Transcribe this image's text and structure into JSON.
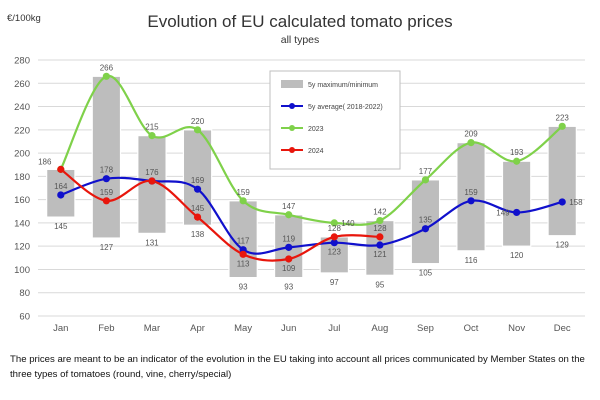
{
  "chart_data": {
    "type": "line",
    "title": "Evolution of EU calculated tomato prices",
    "subtitle": "all types",
    "ylabel": "€/100kg",
    "xlabel": "",
    "categories": [
      "Jan",
      "Feb",
      "Mar",
      "Apr",
      "May",
      "Jun",
      "Jul",
      "Aug",
      "Sep",
      "Oct",
      "Nov",
      "Dec"
    ],
    "ylim": [
      60,
      280
    ],
    "yticks": [
      60,
      80,
      100,
      120,
      140,
      160,
      180,
      200,
      220,
      240,
      260,
      280
    ],
    "grid": true,
    "legend_position": "top-center",
    "range": {
      "name": "5y maximum/minimum",
      "color": "#bdbdbd",
      "max": [
        186,
        266,
        215,
        220,
        159,
        147,
        128,
        142,
        177,
        209,
        193,
        223
      ],
      "min": [
        145,
        127,
        131,
        138,
        93,
        93,
        97,
        95,
        105,
        116,
        120,
        129
      ]
    },
    "series": [
      {
        "name": "5y average( 2018-2022)",
        "color": "#1010cc",
        "values": [
          164,
          178,
          176,
          169,
          117,
          119,
          123,
          121,
          135,
          159,
          149,
          158
        ]
      },
      {
        "name": "2023",
        "color": "#7fd14a",
        "values": [
          186,
          266,
          215,
          220,
          159,
          147,
          140,
          142,
          177,
          209,
          193,
          223
        ]
      },
      {
        "name": "2024",
        "color": "#e8160c",
        "values": [
          186,
          159,
          176,
          145,
          113,
          109,
          128,
          128,
          null,
          null,
          null,
          null
        ]
      }
    ],
    "point_labels": [
      {
        "x": "Jan",
        "text": "186",
        "pos": "above-left"
      },
      {
        "x": "Jan",
        "text": "164",
        "pos": "above"
      },
      {
        "x": "Jan",
        "text": "145",
        "pos": "below"
      },
      {
        "x": "Feb",
        "text": "266",
        "pos": "above"
      },
      {
        "x": "Feb",
        "text": "178",
        "pos": "above"
      },
      {
        "x": "Feb",
        "text": "159",
        "pos": "above"
      },
      {
        "x": "Feb",
        "text": "127",
        "pos": "below"
      },
      {
        "x": "Mar",
        "text": "215",
        "pos": "above"
      },
      {
        "x": "Mar",
        "text": "176",
        "pos": "above"
      },
      {
        "x": "Mar",
        "text": "131",
        "pos": "below"
      },
      {
        "x": "Apr",
        "text": "220",
        "pos": "above"
      },
      {
        "x": "Apr",
        "text": "169",
        "pos": "above"
      },
      {
        "x": "Apr",
        "text": "145",
        "pos": "above"
      },
      {
        "x": "Apr",
        "text": "138",
        "pos": "below"
      },
      {
        "x": "May",
        "text": "159",
        "pos": "above"
      },
      {
        "x": "May",
        "text": "117",
        "pos": "above"
      },
      {
        "x": "May",
        "text": "113",
        "pos": "below"
      },
      {
        "x": "May",
        "text": "93",
        "pos": "below"
      },
      {
        "x": "Jun",
        "text": "147",
        "pos": "above"
      },
      {
        "x": "Jun",
        "text": "119",
        "pos": "above"
      },
      {
        "x": "Jun",
        "text": "109",
        "pos": "below"
      },
      {
        "x": "Jun",
        "text": "93",
        "pos": "below"
      },
      {
        "x": "Jul",
        "text": "140",
        "pos": "right"
      },
      {
        "x": "Jul",
        "text": "128",
        "pos": "above"
      },
      {
        "x": "Jul",
        "text": "123",
        "pos": "below"
      },
      {
        "x": "Jul",
        "text": "97",
        "pos": "below"
      },
      {
        "x": "Aug",
        "text": "142",
        "pos": "above"
      },
      {
        "x": "Aug",
        "text": "128",
        "pos": "above"
      },
      {
        "x": "Aug",
        "text": "121",
        "pos": "below"
      },
      {
        "x": "Aug",
        "text": "95",
        "pos": "below"
      },
      {
        "x": "Sep",
        "text": "177",
        "pos": "above"
      },
      {
        "x": "Sep",
        "text": "135",
        "pos": "above"
      },
      {
        "x": "Sep",
        "text": "105",
        "pos": "below"
      },
      {
        "x": "Oct",
        "text": "209",
        "pos": "above"
      },
      {
        "x": "Oct",
        "text": "159",
        "pos": "above"
      },
      {
        "x": "Oct",
        "text": "116",
        "pos": "below"
      },
      {
        "x": "Nov",
        "text": "193",
        "pos": "above"
      },
      {
        "x": "Nov",
        "text": "149",
        "pos": "left"
      },
      {
        "x": "Nov",
        "text": "120",
        "pos": "below"
      },
      {
        "x": "Dec",
        "text": "223",
        "pos": "above"
      },
      {
        "x": "Dec",
        "text": "158",
        "pos": "right"
      },
      {
        "x": "Dec",
        "text": "129",
        "pos": "below"
      }
    ]
  },
  "footnote": "The prices are meant to be an indicator of the evolution in the EU taking into account all prices communicated by Member States on the three types of tomatoes (round, vine, cherry/special)"
}
